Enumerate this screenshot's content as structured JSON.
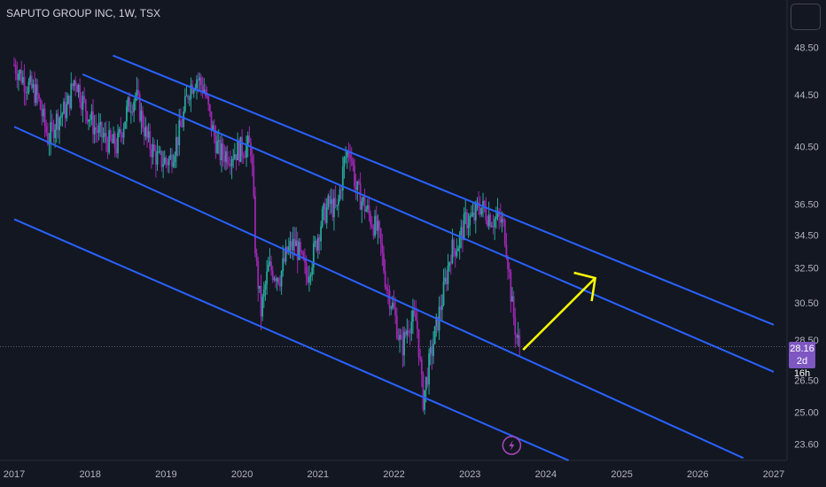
{
  "header": {
    "title": "SAPUTO GROUP INC, 1W, TSX"
  },
  "price_badge": {
    "price": "28.16",
    "countdown": "2d 16h"
  },
  "colors": {
    "background": "#131722",
    "bull": "#26a69a",
    "bear": "#9c27b0",
    "channel": "#2962ff",
    "arrow": "#ffff00",
    "badge": "#7e57c2",
    "event_icon": "#ab47bc"
  },
  "event_icon": "lightning-icon",
  "chart_data": {
    "type": "candlestick",
    "title": "SAPUTO GROUP INC, 1W, TSX",
    "x_ticks": [
      "2017",
      "2018",
      "2019",
      "2020",
      "2021",
      "2022",
      "2023",
      "2024",
      "2025",
      "2026",
      "2027"
    ],
    "y_ticks": [
      "48.50",
      "44.50",
      "40.50",
      "36.50",
      "34.50",
      "32.50",
      "30.50",
      "28.50",
      "26.50",
      "25.00",
      "23.60"
    ],
    "y_scale": "log",
    "xlim": [
      2017.0,
      2027.0
    ],
    "ylim": [
      22.9,
      52.2
    ],
    "last_price": 28.16,
    "price_path": [
      [
        2017.0,
        47.0
      ],
      [
        2017.15,
        45.5
      ],
      [
        2017.3,
        44.5
      ],
      [
        2017.45,
        41.0
      ],
      [
        2017.55,
        42.5
      ],
      [
        2017.7,
        43.5
      ],
      [
        2017.8,
        46.0
      ],
      [
        2017.9,
        44.0
      ],
      [
        2018.05,
        42.0
      ],
      [
        2018.2,
        41.0
      ],
      [
        2018.35,
        40.5
      ],
      [
        2018.5,
        43.5
      ],
      [
        2018.6,
        44.5
      ],
      [
        2018.75,
        41.0
      ],
      [
        2018.9,
        39.5
      ],
      [
        2019.05,
        39.5
      ],
      [
        2019.2,
        42.0
      ],
      [
        2019.3,
        45.0
      ],
      [
        2019.4,
        46.0
      ],
      [
        2019.5,
        45.0
      ],
      [
        2019.6,
        42.0
      ],
      [
        2019.7,
        40.0
      ],
      [
        2019.85,
        40.0
      ],
      [
        2020.05,
        40.5
      ],
      [
        2020.12,
        40.5
      ],
      [
        2020.18,
        33.0
      ],
      [
        2020.25,
        30.0
      ],
      [
        2020.35,
        32.5
      ],
      [
        2020.5,
        32.0
      ],
      [
        2020.6,
        33.5
      ],
      [
        2020.7,
        34.0
      ],
      [
        2020.85,
        32.0
      ],
      [
        2020.95,
        33.5
      ],
      [
        2021.05,
        35.5
      ],
      [
        2021.15,
        36.5
      ],
      [
        2021.25,
        36.0
      ],
      [
        2021.35,
        39.5
      ],
      [
        2021.42,
        40.5
      ],
      [
        2021.5,
        37.5
      ],
      [
        2021.6,
        36.5
      ],
      [
        2021.7,
        35.5
      ],
      [
        2021.8,
        34.5
      ],
      [
        2021.9,
        31.5
      ],
      [
        2022.0,
        30.0
      ],
      [
        2022.1,
        28.0
      ],
      [
        2022.2,
        29.5
      ],
      [
        2022.3,
        29.5
      ],
      [
        2022.38,
        25.5
      ],
      [
        2022.45,
        27.0
      ],
      [
        2022.55,
        29.0
      ],
      [
        2022.65,
        31.0
      ],
      [
        2022.75,
        33.5
      ],
      [
        2022.85,
        34.0
      ],
      [
        2022.95,
        35.5
      ],
      [
        2023.05,
        35.5
      ],
      [
        2023.12,
        36.5
      ],
      [
        2023.2,
        36.0
      ],
      [
        2023.3,
        35.5
      ],
      [
        2023.38,
        35.5
      ],
      [
        2023.45,
        35.0
      ],
      [
        2023.5,
        33.0
      ],
      [
        2023.55,
        30.5
      ],
      [
        2023.62,
        28.5
      ],
      [
        2023.67,
        28.16
      ]
    ],
    "channel_lines": [
      {
        "name": "upper",
        "points": [
          [
            2018.3,
            47.8
          ],
          [
            2027.0,
            29.3
          ]
        ]
      },
      {
        "name": "middle",
        "points": [
          [
            2017.9,
            46.2
          ],
          [
            2027.0,
            26.9
          ]
        ]
      },
      {
        "name": "lower-mid",
        "points": [
          [
            2017.0,
            42.0
          ],
          [
            2026.6,
            23.0
          ]
        ]
      },
      {
        "name": "bottom",
        "points": [
          [
            2017.0,
            35.5
          ],
          [
            2024.3,
            22.9
          ]
        ]
      }
    ],
    "projection_arrow": {
      "from": [
        2023.7,
        28.0
      ],
      "to": [
        2024.65,
        31.9
      ]
    }
  }
}
